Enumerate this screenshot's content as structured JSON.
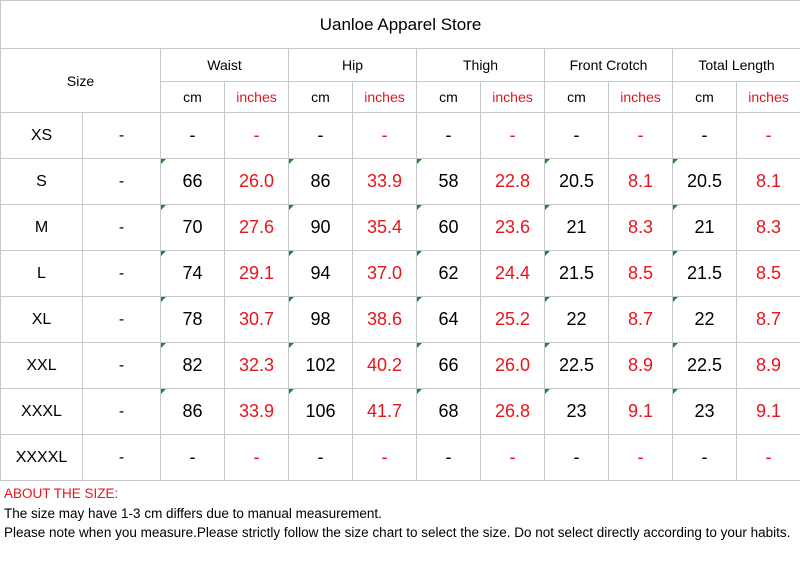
{
  "store_title": "Uanloe Apparel Store",
  "size_header": "Size",
  "groups": [
    "Waist",
    "Hip",
    "Thigh",
    "Front Crotch",
    "Total Length"
  ],
  "units": {
    "cm": "cm",
    "inches": "inches"
  },
  "rows": [
    {
      "size": "XS",
      "code": "-",
      "values": [
        "-",
        "-",
        "-",
        "-",
        "-",
        "-",
        "-",
        "-",
        "-",
        "-"
      ]
    },
    {
      "size": "S",
      "code": "-",
      "values": [
        "66",
        "26.0",
        "86",
        "33.9",
        "58",
        "22.8",
        "20.5",
        "8.1",
        "20.5",
        "8.1"
      ]
    },
    {
      "size": "M",
      "code": "-",
      "values": [
        "70",
        "27.6",
        "90",
        "35.4",
        "60",
        "23.6",
        "21",
        "8.3",
        "21",
        "8.3"
      ]
    },
    {
      "size": "L",
      "code": "-",
      "values": [
        "74",
        "29.1",
        "94",
        "37.0",
        "62",
        "24.4",
        "21.5",
        "8.5",
        "21.5",
        "8.5"
      ]
    },
    {
      "size": "XL",
      "code": "-",
      "values": [
        "78",
        "30.7",
        "98",
        "38.6",
        "64",
        "25.2",
        "22",
        "8.7",
        "22",
        "8.7"
      ]
    },
    {
      "size": "XXL",
      "code": "-",
      "values": [
        "82",
        "32.3",
        "102",
        "40.2",
        "66",
        "26.0",
        "22.5",
        "8.9",
        "22.5",
        "8.9"
      ]
    },
    {
      "size": "XXXL",
      "code": "-",
      "values": [
        "86",
        "33.9",
        "106",
        "41.7",
        "68",
        "26.8",
        "23",
        "9.1",
        "23",
        "9.1"
      ]
    },
    {
      "size": "XXXXL",
      "code": "-",
      "values": [
        "-",
        "-",
        "-",
        "-",
        "-",
        "-",
        "-",
        "-",
        "-",
        "-"
      ]
    }
  ],
  "notes": {
    "heading": "ABOUT THE SIZE:",
    "line1": "The size may have 1-3 cm differs due to manual measurement.",
    "line2": "Please note when you measure.Please strictly follow the size chart  to select the size. Do not select directly according to your habits."
  },
  "colors": {
    "inches_text": "#e8141c",
    "cell_marker": "#1e8a2a",
    "grid_line": "#c8c8c8"
  }
}
